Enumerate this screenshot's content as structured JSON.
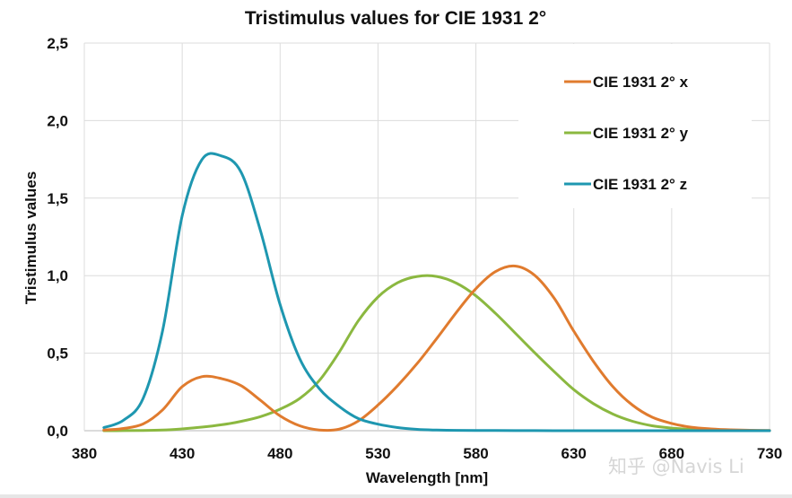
{
  "chart_data": {
    "type": "line",
    "title": "Tristimulus values for CIE 1931 2°",
    "xlabel": "Wavelength [nm]",
    "ylabel": "Tristimulus values",
    "xlim": [
      380,
      730
    ],
    "ylim": [
      0,
      2.5
    ],
    "xticks": [
      380,
      430,
      480,
      530,
      580,
      630,
      680,
      730
    ],
    "xtick_labels": [
      "380",
      "430",
      "480",
      "530",
      "580",
      "630",
      "680",
      "730"
    ],
    "yticks": [
      0,
      0.5,
      1.0,
      1.5,
      2.0,
      2.5
    ],
    "ytick_labels": [
      "0,0",
      "0,5",
      "1,0",
      "1,5",
      "2,0",
      "2,5"
    ],
    "grid": true,
    "legend_position": "top-right",
    "x": [
      390,
      400,
      410,
      420,
      430,
      440,
      450,
      460,
      470,
      480,
      490,
      500,
      510,
      520,
      530,
      540,
      550,
      560,
      570,
      580,
      590,
      600,
      610,
      620,
      630,
      640,
      650,
      660,
      670,
      680,
      690,
      700,
      710,
      720,
      730
    ],
    "series": [
      {
        "name": "CIE 1931 2° x",
        "color": "#E07B2E",
        "values": [
          0.0042,
          0.0143,
          0.0435,
          0.1344,
          0.2839,
          0.3483,
          0.3362,
          0.2908,
          0.1954,
          0.0956,
          0.032,
          0.0049,
          0.0093,
          0.0633,
          0.1655,
          0.2904,
          0.4334,
          0.5945,
          0.7621,
          0.9163,
          1.0263,
          1.0622,
          1.0026,
          0.8544,
          0.6424,
          0.4479,
          0.2835,
          0.1649,
          0.0874,
          0.0468,
          0.0227,
          0.0114,
          0.0058,
          0.0029,
          0.0014
        ]
      },
      {
        "name": "CIE 1931 2° y",
        "color": "#8BB840",
        "values": [
          0.0001,
          0.0004,
          0.0012,
          0.004,
          0.0116,
          0.023,
          0.038,
          0.06,
          0.091,
          0.139,
          0.208,
          0.323,
          0.503,
          0.71,
          0.862,
          0.954,
          0.995,
          0.995,
          0.952,
          0.87,
          0.757,
          0.631,
          0.503,
          0.381,
          0.265,
          0.175,
          0.107,
          0.061,
          0.032,
          0.017,
          0.0082,
          0.0041,
          0.0021,
          0.001,
          0.0005
        ]
      },
      {
        "name": "CIE 1931 2° z",
        "color": "#1E97B0",
        "values": [
          0.02,
          0.0679,
          0.2074,
          0.6456,
          1.3856,
          1.7471,
          1.7721,
          1.6692,
          1.2876,
          0.813,
          0.4652,
          0.272,
          0.1582,
          0.0782,
          0.0422,
          0.0203,
          0.0087,
          0.0039,
          0.0021,
          0.0017,
          0.0011,
          0.0008,
          0.0003,
          0.0002,
          0.0,
          0.0,
          0.0,
          0.0,
          0.0,
          0.0,
          0.0,
          0.0,
          0.0,
          0.0,
          0.0
        ]
      }
    ]
  },
  "watermark": "知乎 @Navis Li"
}
